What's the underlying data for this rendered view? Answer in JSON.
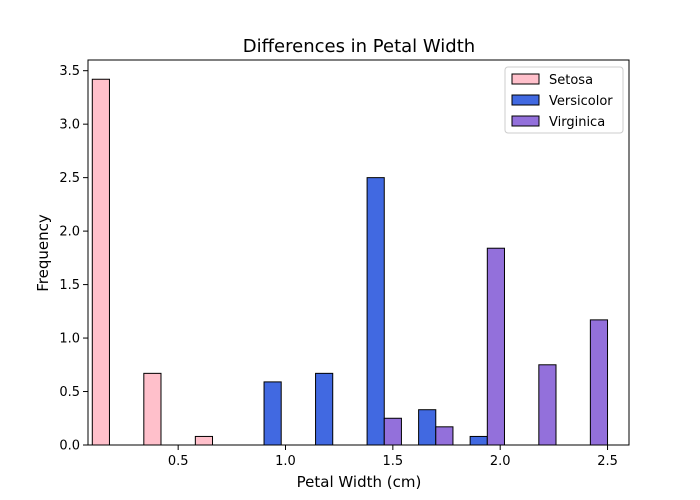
{
  "chart_data": {
    "type": "bar",
    "title": "Differences in Petal Width",
    "xlabel": "Petal Width (cm)",
    "ylabel": "Frequency",
    "xlim": [
      0.08,
      2.6
    ],
    "ylim": [
      0,
      3.6
    ],
    "xticks": [
      0.5,
      1.0,
      1.5,
      2.0,
      2.5
    ],
    "xtick_labels": [
      "0.5",
      "1.0",
      "1.5",
      "2.0",
      "2.5"
    ],
    "yticks": [
      0,
      0.5,
      1.0,
      1.5,
      2.0,
      2.5,
      3.0,
      3.5
    ],
    "ytick_labels": [
      "0.0",
      "0.5",
      "1.0",
      "1.5",
      "2.0",
      "2.5",
      "3.0",
      "3.5"
    ],
    "bin_width": 0.24,
    "bin_start": 0.1,
    "bins": 10,
    "grid": false,
    "legend": "top-right",
    "series": [
      {
        "name": "Setosa",
        "color": "#ffc0cb",
        "values": [
          3.42,
          0.67,
          0.08,
          0,
          0,
          0,
          0,
          0,
          0,
          0
        ]
      },
      {
        "name": "Versicolor",
        "color": "#4169e1",
        "values": [
          0,
          0,
          0,
          0.59,
          0.67,
          2.5,
          0.33,
          0.08,
          0,
          0
        ]
      },
      {
        "name": "Virginica",
        "color": "#9370db",
        "values": [
          0,
          0,
          0,
          0,
          0,
          0.25,
          0.17,
          1.84,
          0.75,
          1.17
        ]
      }
    ]
  }
}
